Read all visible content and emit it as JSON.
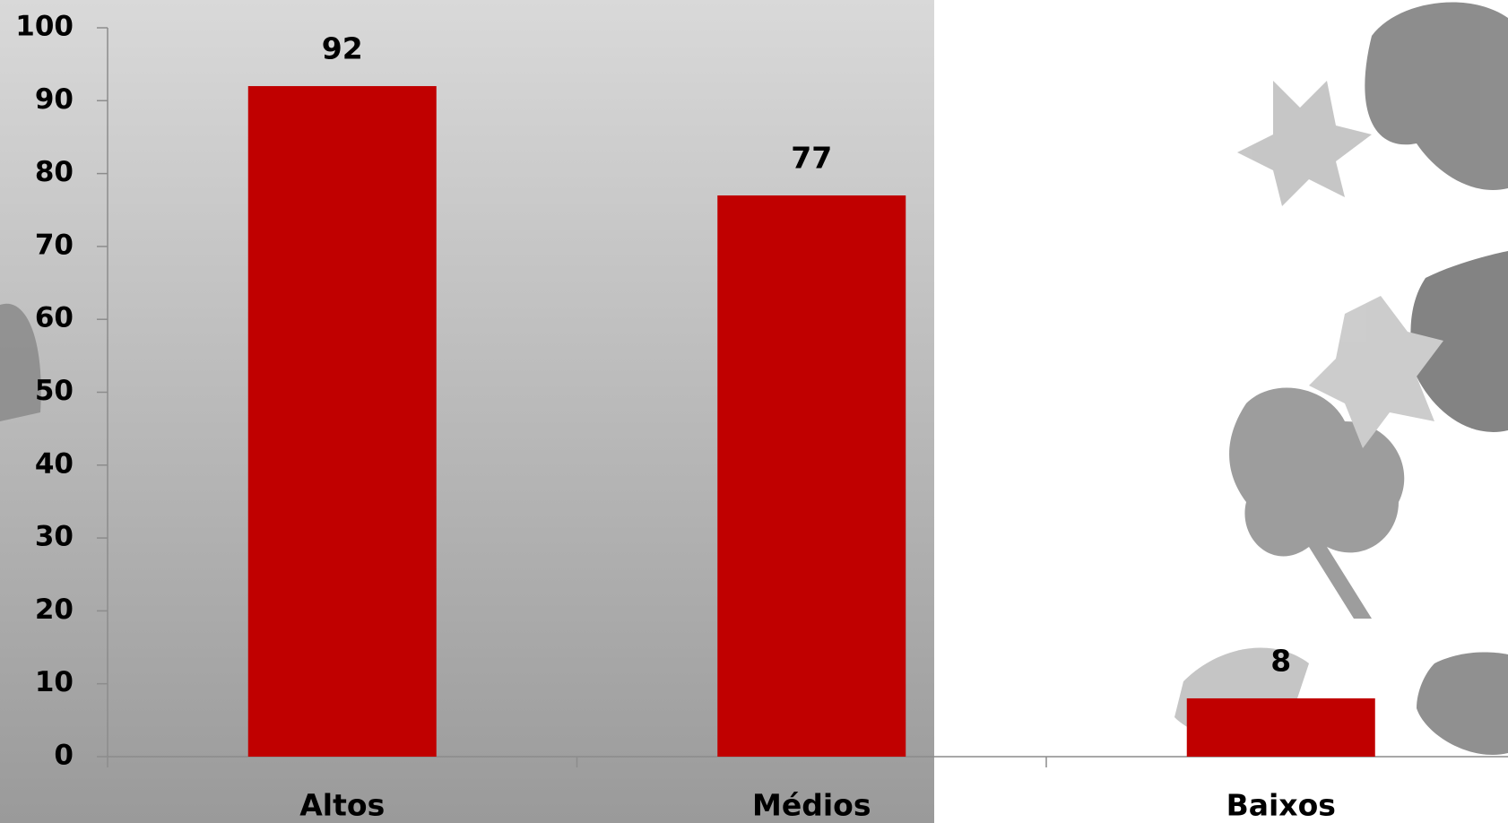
{
  "chart_data": {
    "type": "bar",
    "categories": [
      "Altos",
      "Médios",
      "Baixos"
    ],
    "values": [
      92,
      77,
      8
    ],
    "color": "#c00000",
    "ylim": [
      0,
      100
    ],
    "yticks": [
      0,
      10,
      20,
      30,
      40,
      50,
      60,
      70,
      80,
      90,
      100
    ]
  }
}
